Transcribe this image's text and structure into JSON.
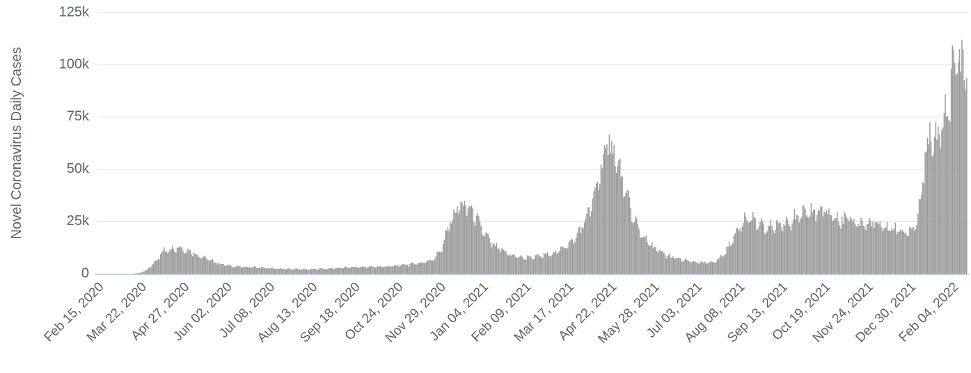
{
  "chart_data": {
    "type": "bar",
    "title": "",
    "xlabel": "",
    "ylabel": "Novel Coronavirus Daily Cases",
    "ylim": [
      0,
      125000
    ],
    "grid": true,
    "legend": "none",
    "y_ticks": [
      "0",
      "25k",
      "50k",
      "75k",
      "100k",
      "125k"
    ],
    "y_tick_values": [
      0,
      25000,
      50000,
      75000,
      100000,
      125000
    ],
    "x_tick_labels": [
      "Feb 15, 2020",
      "Mar 22, 2020",
      "Apr 27, 2020",
      "Jun 02, 2020",
      "Jul 08, 2020",
      "Aug 13, 2020",
      "Sep 18, 2020",
      "Oct 24, 2020",
      "Nov 29, 2020",
      "Jan 04, 2021",
      "Feb 09, 2021",
      "Mar 17, 2021",
      "Apr 22, 2021",
      "May 28, 2021",
      "Jul 03, 2021",
      "Aug 08, 2021",
      "Sep 13, 2021",
      "Oct 19, 2021",
      "Nov 24, 2021",
      "Dec 30, 2021",
      "Feb 04, 2022"
    ],
    "x_tick_days": [
      0,
      36,
      72,
      108,
      144,
      180,
      216,
      252,
      288,
      324,
      360,
      396,
      432,
      468,
      504,
      540,
      576,
      612,
      648,
      684,
      720
    ],
    "days_total": 732,
    "anchors": [
      [
        0,
        0
      ],
      [
        25,
        0
      ],
      [
        30,
        80
      ],
      [
        35,
        400
      ],
      [
        40,
        1600
      ],
      [
        45,
        4200
      ],
      [
        50,
        7800
      ],
      [
        55,
        10800
      ],
      [
        60,
        12200
      ],
      [
        65,
        12600
      ],
      [
        70,
        12000
      ],
      [
        75,
        11000
      ],
      [
        80,
        9900
      ],
      [
        85,
        8700
      ],
      [
        90,
        7400
      ],
      [
        95,
        6100
      ],
      [
        100,
        5100
      ],
      [
        107,
        4200
      ],
      [
        114,
        3500
      ],
      [
        121,
        3100
      ],
      [
        128,
        3200
      ],
      [
        135,
        2900
      ],
      [
        142,
        2600
      ],
      [
        149,
        2400
      ],
      [
        156,
        2300
      ],
      [
        163,
        2200
      ],
      [
        170,
        2100
      ],
      [
        177,
        2050
      ],
      [
        184,
        2200
      ],
      [
        191,
        2400
      ],
      [
        198,
        2600
      ],
      [
        205,
        2800
      ],
      [
        212,
        3000
      ],
      [
        219,
        3100
      ],
      [
        226,
        3200
      ],
      [
        233,
        3300
      ],
      [
        240,
        3450
      ],
      [
        247,
        3700
      ],
      [
        254,
        4000
      ],
      [
        261,
        4400
      ],
      [
        268,
        4900
      ],
      [
        275,
        5600
      ],
      [
        282,
        7000
      ],
      [
        289,
        12000
      ],
      [
        296,
        25000
      ],
      [
        303,
        31500
      ],
      [
        310,
        32500
      ],
      [
        317,
        27500
      ],
      [
        324,
        20000
      ],
      [
        331,
        14500
      ],
      [
        338,
        11500
      ],
      [
        345,
        9500
      ],
      [
        352,
        8200
      ],
      [
        359,
        7600
      ],
      [
        366,
        7900
      ],
      [
        373,
        8400
      ],
      [
        380,
        9300
      ],
      [
        387,
        10800
      ],
      [
        394,
        13500
      ],
      [
        401,
        17000
      ],
      [
        408,
        23000
      ],
      [
        415,
        33000
      ],
      [
        422,
        48000
      ],
      [
        428,
        60000
      ],
      [
        431,
        63000
      ],
      [
        435,
        58000
      ],
      [
        442,
        42000
      ],
      [
        449,
        28500
      ],
      [
        456,
        20000
      ],
      [
        463,
        14800
      ],
      [
        470,
        11300
      ],
      [
        477,
        9100
      ],
      [
        484,
        7700
      ],
      [
        491,
        6700
      ],
      [
        498,
        5900
      ],
      [
        505,
        5300
      ],
      [
        512,
        5100
      ],
      [
        519,
        5700
      ],
      [
        526,
        8800
      ],
      [
        533,
        15500
      ],
      [
        540,
        23500
      ],
      [
        547,
        26500
      ],
      [
        554,
        24500
      ],
      [
        561,
        21500
      ],
      [
        568,
        22500
      ],
      [
        575,
        23500
      ],
      [
        582,
        25500
      ],
      [
        589,
        27000
      ],
      [
        596,
        28500
      ],
      [
        603,
        29500
      ],
      [
        610,
        30500
      ],
      [
        617,
        28500
      ],
      [
        624,
        26500
      ],
      [
        631,
        25500
      ],
      [
        638,
        24500
      ],
      [
        645,
        23500
      ],
      [
        652,
        24500
      ],
      [
        659,
        22500
      ],
      [
        666,
        21500
      ],
      [
        673,
        20500
      ],
      [
        680,
        19500
      ],
      [
        687,
        22000
      ],
      [
        690,
        28000
      ],
      [
        694,
        42000
      ],
      [
        697,
        58000
      ],
      [
        700,
        66000
      ],
      [
        703,
        60000
      ],
      [
        706,
        63000
      ],
      [
        709,
        68000
      ],
      [
        712,
        72000
      ],
      [
        715,
        78000
      ],
      [
        718,
        88000
      ],
      [
        722,
        103000
      ],
      [
        724,
        110000
      ],
      [
        726,
        99000
      ],
      [
        727,
        110000
      ],
      [
        729,
        100000
      ],
      [
        731,
        94000
      ]
    ],
    "colors": {
      "bar": "#9b9b9b",
      "gridline": "#dcdcdc",
      "axis_line": "#c3d0e0",
      "tick_text": "#5c6266",
      "axis_title_text": "#5c6266",
      "background": "#ffffff"
    }
  }
}
